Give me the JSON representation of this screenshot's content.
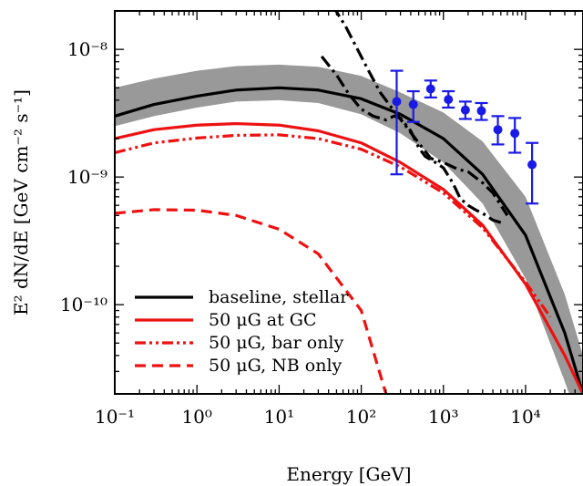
{
  "chart_data": {
    "type": "line",
    "xlabel": "Energy [GeV]",
    "ylabel": "E² dN/dE [GeV cm⁻² s⁻¹]",
    "xscale": "log",
    "yscale": "log",
    "xlim": [
      0.1,
      50000
    ],
    "ylim": [
      2e-11,
      2e-08
    ],
    "x_ticks": [
      {
        "value": 0.1,
        "label": "10⁻¹"
      },
      {
        "value": 1,
        "label": "10⁰"
      },
      {
        "value": 10,
        "label": "10¹"
      },
      {
        "value": 100,
        "label": "10²"
      },
      {
        "value": 1000,
        "label": "10³"
      },
      {
        "value": 10000,
        "label": "10⁴"
      }
    ],
    "y_ticks": [
      {
        "value": 1e-10,
        "label": "10⁻¹⁰"
      },
      {
        "value": 1e-09,
        "label": "10⁻⁹"
      },
      {
        "value": 1e-08,
        "label": "10⁻⁸"
      }
    ],
    "grid": false,
    "legend_position": "lower-left",
    "band": {
      "color": "#999999",
      "x": [
        0.1,
        0.3,
        1,
        3,
        10,
        30,
        100,
        300,
        1000,
        3000,
        10000,
        30000,
        50000
      ],
      "upper": [
        5e-09,
        5.9e-09,
        6.8e-09,
        7.4e-09,
        7.6e-09,
        7.3e-09,
        6.2e-09,
        4.6e-09,
        3.2e-09,
        1.9e-09,
        7e-10,
        1.2e-10,
        4e-11
      ],
      "lower": [
        2.5e-09,
        3e-09,
        3.5e-09,
        3.9e-09,
        4e-09,
        3.8e-09,
        3.1e-09,
        2.2e-09,
        1.3e-09,
        6.2e-10,
        1.6e-10,
        2.5e-11,
        1e-11
      ]
    },
    "series": [
      {
        "name": "baseline, stellar",
        "color": "#000000",
        "style": "solid",
        "x": [
          0.1,
          0.3,
          1,
          3,
          10,
          30,
          100,
          300,
          1000,
          3000,
          10000,
          30000,
          50000
        ],
        "values": [
          3e-09,
          3.7e-09,
          4.3e-09,
          4.8e-09,
          5e-09,
          4.8e-09,
          4.1e-09,
          3.1e-09,
          2e-09,
          1.05e-09,
          3.5e-10,
          6e-11,
          2e-11
        ]
      },
      {
        "name": "50 μG at GC",
        "color": "#ee1111",
        "style": "solid",
        "x": [
          0.1,
          0.3,
          1,
          3,
          10,
          30,
          100,
          300,
          1000,
          3000,
          10000,
          30000,
          50000
        ],
        "values": [
          2e-09,
          2.35e-09,
          2.55e-09,
          2.62e-09,
          2.55e-09,
          2.3e-09,
          1.85e-09,
          1.3e-09,
          8e-10,
          4.2e-10,
          1.45e-10,
          4e-11,
          2e-11
        ]
      },
      {
        "name": "50 μG, bar only",
        "color": "#ee1111",
        "style": "dashdotdot",
        "x": [
          0.1,
          0.3,
          1,
          3,
          10,
          30,
          100,
          300,
          1000,
          3000,
          10000,
          20000
        ],
        "values": [
          1.55e-09,
          1.85e-09,
          2.02e-09,
          2.12e-09,
          2.14e-09,
          2e-09,
          1.65e-09,
          1.2e-09,
          7.5e-10,
          4e-10,
          1.5e-10,
          8e-11
        ]
      },
      {
        "name": "50 μG, NB only",
        "color": "#ee1111",
        "style": "dashed",
        "x": [
          0.1,
          0.3,
          1,
          3,
          10,
          30,
          100,
          200
        ],
        "values": [
          5.2e-10,
          5.55e-10,
          5.5e-10,
          5e-10,
          3.9e-10,
          2.5e-10,
          9e-11,
          2e-11
        ]
      },
      {
        "name": "",
        "color": "#000000",
        "style": "dashdot",
        "x": [
          45,
          65,
          90,
          120,
          170,
          250,
          350,
          500,
          700,
          1000,
          1500,
          2000,
          3000,
          4000,
          5000,
          6000
        ],
        "values": [
          2.2e-08,
          1.5e-08,
          1e-08,
          7e-09,
          4.6e-09,
          3.3e-09,
          2.5e-09,
          1.85e-09,
          1.4e-09,
          1.3e-09,
          1.15e-09,
          1.1e-09,
          9e-10,
          7.5e-10,
          6e-10,
          5e-10
        ]
      },
      {
        "name": "",
        "color": "#000000",
        "style": "dashdot",
        "x": [
          33,
          50,
          70,
          100,
          140,
          200,
          250,
          300,
          400,
          500,
          600,
          800,
          1000,
          1300,
          1600,
          2000,
          2500,
          3000,
          4000,
          5000
        ],
        "values": [
          8.8e-09,
          6.3e-09,
          4.5e-09,
          3.4e-09,
          3e-09,
          2.8e-09,
          3e-09,
          2.9e-09,
          2.3e-09,
          1.7e-09,
          1.45e-09,
          1.3e-09,
          1.18e-09,
          9e-10,
          6.8e-10,
          6e-10,
          5.5e-10,
          5.2e-10,
          4.6e-10,
          4.4e-10
        ]
      }
    ],
    "errorbars": {
      "color": "#1a1ae6",
      "points": [
        {
          "x": 270,
          "y": 3.9e-09,
          "lo": 1.05e-09,
          "hi": 6.8e-09
        },
        {
          "x": 430,
          "y": 3.7e-09,
          "lo": 2.7e-09,
          "hi": 4.7e-09
        },
        {
          "x": 700,
          "y": 4.9e-09,
          "lo": 4.2e-09,
          "hi": 5.7e-09
        },
        {
          "x": 1150,
          "y": 4.05e-09,
          "lo": 3.5e-09,
          "hi": 4.7e-09
        },
        {
          "x": 1850,
          "y": 3.35e-09,
          "lo": 2.85e-09,
          "hi": 3.9e-09
        },
        {
          "x": 2900,
          "y": 3.3e-09,
          "lo": 2.8e-09,
          "hi": 3.8e-09
        },
        {
          "x": 4600,
          "y": 2.35e-09,
          "lo": 1.8e-09,
          "hi": 3e-09
        },
        {
          "x": 7400,
          "y": 2.2e-09,
          "lo": 1.55e-09,
          "hi": 2.9e-09
        },
        {
          "x": 12000,
          "y": 1.25e-09,
          "lo": 6.2e-10,
          "hi": 1.85e-09
        }
      ]
    }
  }
}
